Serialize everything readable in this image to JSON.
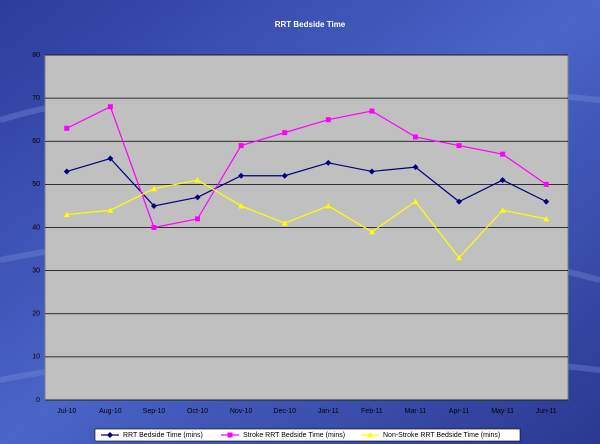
{
  "chart_data": {
    "type": "line",
    "title": "RRT Bedside Time",
    "categories": [
      "Jul-10",
      "Aug-10",
      "Sep-10",
      "Oct-10",
      "Nov-10",
      "Dec-10",
      "Jan-11",
      "Feb-11",
      "Mar-11",
      "Apr-11",
      "May-11",
      "Jun-11"
    ],
    "series": [
      {
        "name": "RRT Bedside Time (mins)",
        "color": "#000080",
        "marker": "diamond",
        "values": [
          53,
          56,
          45,
          47,
          52,
          52,
          55,
          53,
          54,
          46,
          51,
          46
        ]
      },
      {
        "name": "Stroke RRT Bedside Time (mins)",
        "color": "#ff00ff",
        "marker": "square",
        "values": [
          63,
          68,
          40,
          42,
          59,
          62,
          65,
          67,
          61,
          59,
          57,
          50
        ]
      },
      {
        "name": "Non-Stroke RRT Bedside Time (mins)",
        "color": "#ffff00",
        "marker": "triangle",
        "values": [
          43,
          44,
          49,
          51,
          45,
          41,
          45,
          39,
          46,
          33,
          44,
          42
        ]
      }
    ],
    "ylim": [
      0,
      80
    ],
    "yticks": [
      0,
      10,
      20,
      30,
      40,
      50,
      60,
      70,
      80
    ],
    "grid": true,
    "legend": "bottom"
  }
}
